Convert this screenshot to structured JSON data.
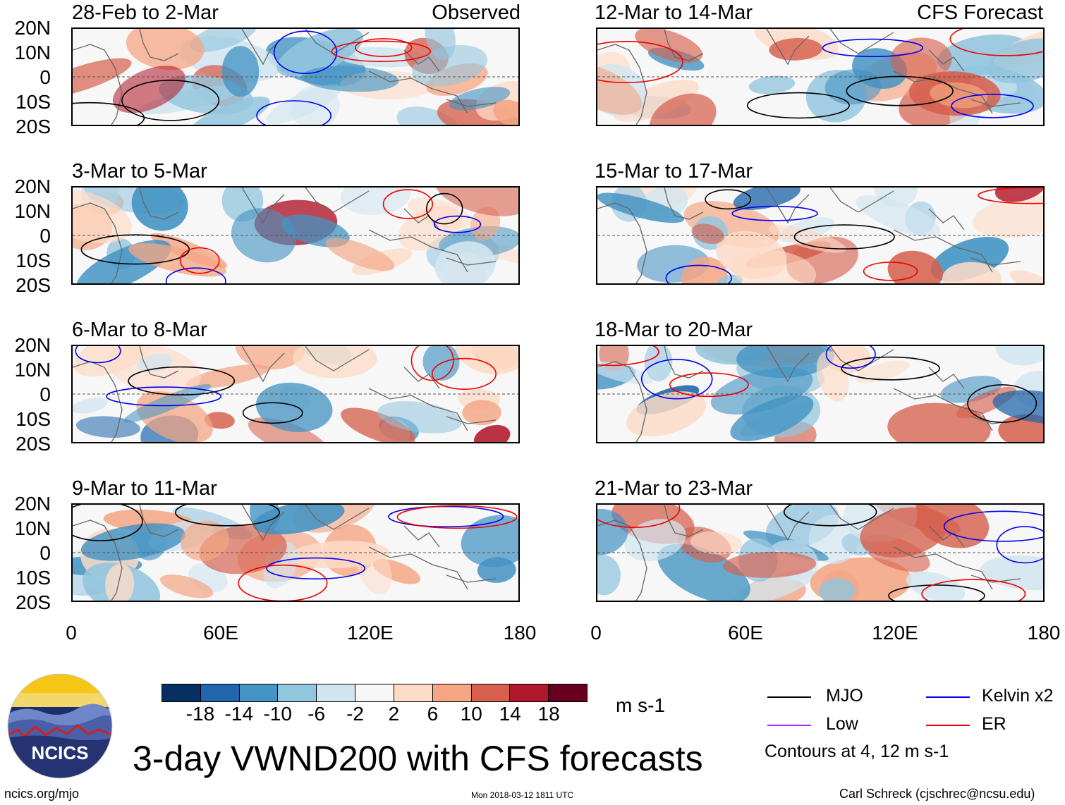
{
  "chart_data": {
    "type": "heatmap",
    "title": "3-day VWND200 with CFS forecasts",
    "variable": "VWND200",
    "units": "m s-1",
    "colorbar": {
      "ticks": [
        "-18",
        "-14",
        "-10",
        "-6",
        "-2",
        "2",
        "6",
        "10",
        "14",
        "18"
      ],
      "colors": [
        "#053061",
        "#2166ac",
        "#4393c3",
        "#92c5de",
        "#d1e5f0",
        "#f7f7f7",
        "#fddbc7",
        "#f4a582",
        "#d6604d",
        "#b2182b",
        "#67001f"
      ]
    },
    "lat_labels": [
      "20N",
      "10N",
      "0",
      "10S",
      "20S"
    ],
    "lon_labels": [
      "0",
      "60E",
      "120E",
      "180"
    ],
    "xlim": [
      0,
      180
    ],
    "ylim": [
      -20,
      20
    ],
    "observed_tag": "Observed",
    "forecast_tag": "CFS Forecast",
    "panels": [
      {
        "column": "left",
        "label": "28-Feb to 2-Mar",
        "source": "Observed"
      },
      {
        "column": "left",
        "label": "3-Mar to 5-Mar",
        "source": "Observed"
      },
      {
        "column": "left",
        "label": "6-Mar to 8-Mar",
        "source": "Observed"
      },
      {
        "column": "left",
        "label": "9-Mar to 11-Mar",
        "source": "Observed"
      },
      {
        "column": "right",
        "label": "12-Mar to 14-Mar",
        "source": "CFS Forecast"
      },
      {
        "column": "right",
        "label": "15-Mar to 17-Mar",
        "source": "CFS Forecast"
      },
      {
        "column": "right",
        "label": "18-Mar to 20-Mar",
        "source": "CFS Forecast"
      },
      {
        "column": "right",
        "label": "21-Mar to 23-Mar",
        "source": "CFS Forecast"
      }
    ],
    "legend": {
      "items": [
        {
          "label": "MJO",
          "color": "#000000"
        },
        {
          "label": "Kelvin x2",
          "color": "#0000ee"
        },
        {
          "label": "Low",
          "color": "#9b30ff"
        },
        {
          "label": "ER",
          "color": "#ee0000"
        }
      ],
      "note": "Contours at 4, 12 m s-1"
    }
  },
  "logo": {
    "text": "NCICS"
  },
  "footer": {
    "url": "ncics.org/mjo",
    "timestamp": "Mon 2018-03-12 1811 UTC",
    "author": "Carl Schreck (cjschrec@ncsu.edu)"
  }
}
